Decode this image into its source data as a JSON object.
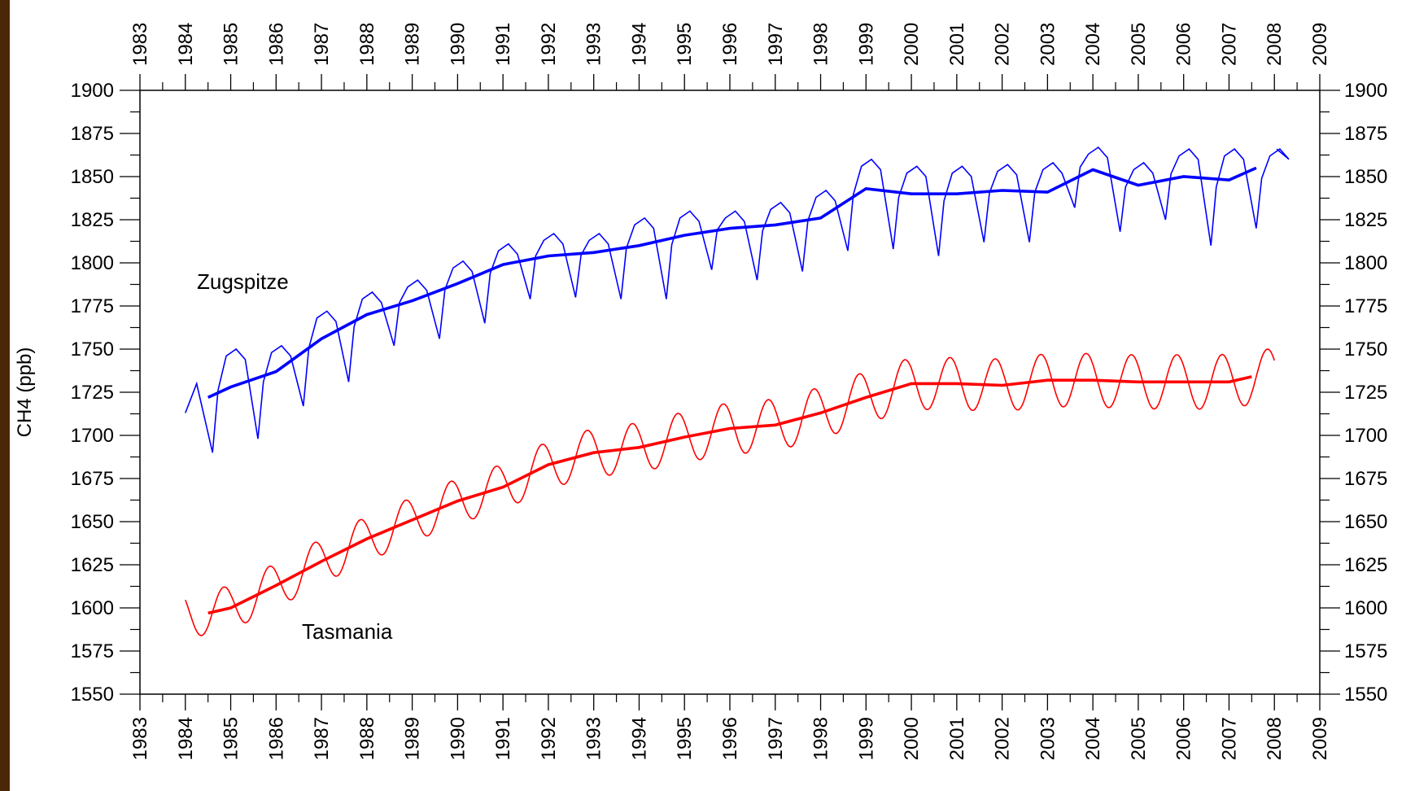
{
  "chart_data": {
    "type": "line",
    "title": "",
    "xlabel": "",
    "ylabel": "CH4 (ppb)",
    "xlim": [
      1983,
      2009
    ],
    "ylim": [
      1550,
      1900
    ],
    "x_ticks": [
      1983,
      1984,
      1985,
      1986,
      1987,
      1988,
      1989,
      1990,
      1991,
      1992,
      1993,
      1994,
      1995,
      1996,
      1997,
      1998,
      1999,
      2000,
      2001,
      2002,
      2003,
      2004,
      2005,
      2006,
      2007,
      2008,
      2009
    ],
    "y_ticks": [
      1550,
      1575,
      1600,
      1625,
      1650,
      1675,
      1700,
      1725,
      1750,
      1775,
      1800,
      1825,
      1850,
      1875,
      1900
    ],
    "grid": false,
    "annotations": [
      "Zugspitze",
      "Tasmania"
    ],
    "series": [
      {
        "label": "Zugspitze",
        "color": "#0000ff",
        "kind": "monthly",
        "trend": [
          [
            1984.5,
            1722
          ],
          [
            1985,
            1728
          ],
          [
            1986,
            1737
          ],
          [
            1987,
            1756
          ],
          [
            1988,
            1770
          ],
          [
            1989,
            1778
          ],
          [
            1990,
            1788
          ],
          [
            1991,
            1799
          ],
          [
            1992,
            1804
          ],
          [
            1993,
            1806
          ],
          [
            1994,
            1810
          ],
          [
            1995,
            1816
          ],
          [
            1996,
            1820
          ],
          [
            1997,
            1822
          ],
          [
            1998,
            1826
          ],
          [
            1999,
            1843
          ],
          [
            2000,
            1840
          ],
          [
            2001,
            1840
          ],
          [
            2002,
            1842
          ],
          [
            2003,
            1841
          ],
          [
            2004,
            1854
          ],
          [
            2005,
            1845
          ],
          [
            2006,
            1850
          ],
          [
            2007,
            1848
          ],
          [
            2007.6,
            1855
          ]
        ],
        "peaks": [
          1730,
          1750,
          1752,
          1772,
          1783,
          1790,
          1801,
          1811,
          1817,
          1817,
          1826,
          1830,
          1830,
          1835,
          1842,
          1860,
          1856,
          1856,
          1857,
          1858,
          1867,
          1858,
          1866,
          1866,
          1866
        ],
        "troughs": [
          1690,
          1698,
          1717,
          1731,
          1752,
          1756,
          1765,
          1779,
          1780,
          1779,
          1779,
          1796,
          1790,
          1795,
          1807,
          1808,
          1804,
          1812,
          1812,
          1832,
          1818,
          1825,
          1810,
          1820
        ],
        "first_point": [
          1984.0,
          1713
        ],
        "last_point": [
          2008.05,
          1866
        ]
      },
      {
        "label": "Tasmania",
        "color": "#ff0000",
        "kind": "sinusoid",
        "trend": [
          [
            1984.5,
            1597
          ],
          [
            1985,
            1600
          ],
          [
            1986,
            1613
          ],
          [
            1987,
            1627
          ],
          [
            1988,
            1640
          ],
          [
            1989,
            1651
          ],
          [
            1990,
            1662
          ],
          [
            1991,
            1670
          ],
          [
            1992,
            1683
          ],
          [
            1993,
            1690
          ],
          [
            1994,
            1693
          ],
          [
            1995,
            1699
          ],
          [
            1996,
            1704
          ],
          [
            1997,
            1706
          ],
          [
            1998,
            1713
          ],
          [
            1999,
            1722
          ],
          [
            2000,
            1730
          ],
          [
            2001,
            1730
          ],
          [
            2002,
            1729
          ],
          [
            2003,
            1732
          ],
          [
            2004,
            1732
          ],
          [
            2005,
            1731
          ],
          [
            2006,
            1731
          ],
          [
            2007,
            1731
          ],
          [
            2007.5,
            1734
          ]
        ],
        "amplitude": [
          [
            1984,
            13
          ],
          [
            1990,
            13
          ],
          [
            1996,
            15
          ],
          [
            2000,
            15
          ],
          [
            2008,
            16
          ]
        ],
        "first_point": [
          1984.0,
          1585
        ],
        "last_point": [
          2008.0,
          1731
        ]
      }
    ]
  }
}
